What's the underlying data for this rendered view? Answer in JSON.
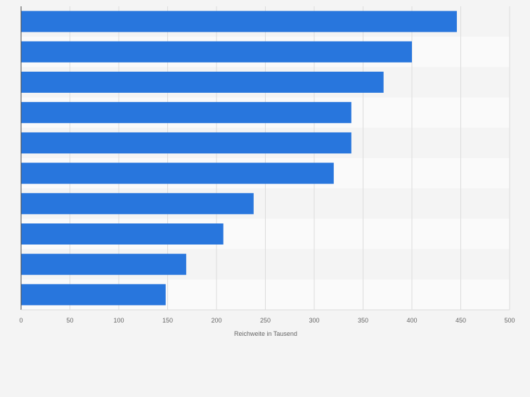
{
  "chart_data": {
    "type": "bar",
    "orientation": "horizontal",
    "categories": [
      "",
      "",
      "",
      "",
      "",
      "",
      "",
      "",
      "",
      ""
    ],
    "values": [
      446,
      400,
      371,
      338,
      338,
      320,
      238,
      207,
      169,
      148
    ],
    "xlabel": "Reichweite in Tausend",
    "ylabel": "",
    "xlim": [
      0,
      500
    ],
    "ticks": [
      "0",
      "50",
      "100",
      "150",
      "200",
      "250",
      "300",
      "350",
      "400",
      "450",
      "500"
    ],
    "grid": true,
    "colors": {
      "bar": "#2876dd",
      "background": "#f4f4f4",
      "band_light": "#fafafa",
      "band_dark": "#f4f4f4",
      "grid": "#dcdcdc",
      "axis": "#444444",
      "text": "#666666"
    }
  }
}
